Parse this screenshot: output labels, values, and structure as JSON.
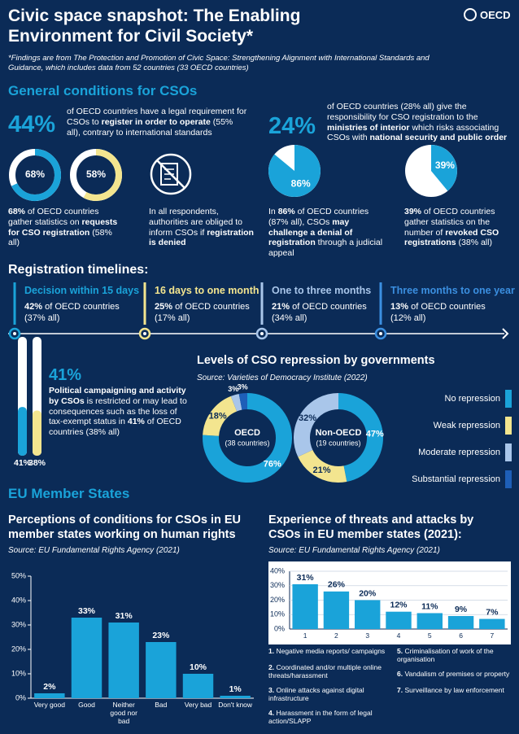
{
  "header": {
    "title": "Civic space snapshot: The Enabling Environment for Civil Society*",
    "logo": "OECD",
    "footnote": "*Findings are from The Protection and Promotion of Civic Space: Strengthening Alignment with International Standards and Guidance, which includes data from 52 countries (33 OECD countries)"
  },
  "general": {
    "heading": "General conditions for CSOs",
    "headline_stats": [
      {
        "value": "44%",
        "parts": [
          "of OECD countries have a legal requirement for CSOs to ",
          {
            "bold": "register in order to operate"
          },
          " (55% all), contrary to international standards"
        ]
      },
      {
        "value": "24%",
        "parts": [
          "of OECD countries (28% all) give the responsibility for CSO registration to the ",
          {
            "bold": "ministries of interior"
          },
          " which risks associating CSOs with ",
          {
            "bold": "national security and public order"
          }
        ]
      }
    ],
    "rings": [
      {
        "value": 68,
        "label": "68%",
        "color": "#1aa3d9"
      },
      {
        "value": 58,
        "label": "58%",
        "color": "#f3e58f"
      }
    ],
    "rings_text": [
      {
        "bold": "68%"
      },
      " of OECD countries gather statistics on ",
      {
        "bold": "requests for CSO registration"
      },
      " (58% all)"
    ],
    "notice_text": [
      "In all respondents, authorities are obliged to inform CSOs if ",
      {
        "bold": "registration is denied"
      }
    ],
    "pies": [
      {
        "value": 86,
        "label": "86%",
        "color": "#1aa3d9",
        "parts": [
          "In ",
          {
            "bold": "86%"
          },
          " of OECD countries (87% all), CSOs ",
          {
            "bold": "may challenge a denial of registration"
          },
          " through a judicial appeal"
        ]
      },
      {
        "value": 39,
        "label": "39%",
        "color": "#1aa3d9",
        "parts": [
          {
            "bold": "39%"
          },
          " of OECD countries gather statistics on the number of ",
          {
            "bold": "revoked CSO registrations"
          },
          " (38% all)"
        ]
      }
    ]
  },
  "timelines": {
    "heading": "Registration timelines:",
    "items": [
      {
        "title": "Decision within 15 days",
        "color": "#1aa3d9",
        "share": "42%",
        "text": " of OECD countries",
        "note": "(37% all)"
      },
      {
        "title": "16 days to one month",
        "color": "#f3e58f",
        "share": "25%",
        "text": " of OECD countries",
        "note": "(17% all)"
      },
      {
        "title": "One to three months",
        "color": "#a9c6ea",
        "share": "21%",
        "text": " of OECD countries",
        "note": "(34% all)"
      },
      {
        "title": "Three months to one year",
        "color": "#3b8fe0",
        "share": "13%",
        "text": " of OECD countries",
        "note": "(12% all)"
      }
    ]
  },
  "campaigning": {
    "headline": "41%",
    "bars": [
      {
        "value": 41,
        "label": "41%",
        "color": "#1aa3d9"
      },
      {
        "value": 38,
        "label": "38%",
        "color": "#f3e58f"
      }
    ],
    "parts": [
      {
        "bold": "Political campaigning and activity by CSOs"
      },
      " is restricted or may lead to consequences such as the loss of tax-exempt status in ",
      {
        "bold": "41%"
      },
      " of OECD countries (38% all)"
    ]
  },
  "repression": {
    "type": "donut",
    "title": "Levels of CSO repression by governments",
    "source": "Source: Varieties of Democracy Institute (2022)",
    "categories": [
      "No repression",
      "Weak repression",
      "Moderate repression",
      "Substantial repression"
    ],
    "colors": [
      "#1aa3d9",
      "#f3e58f",
      "#a9c6ea",
      "#1e5fb8"
    ],
    "series": [
      {
        "name": "OECD",
        "note": "(38 countries)",
        "values": [
          76,
          18,
          3,
          3
        ],
        "value_labels": [
          "76%",
          "18%",
          "3%",
          "3%"
        ]
      },
      {
        "name": "Non-OECD",
        "note": "(19 countries)",
        "values": [
          47,
          21,
          32,
          0
        ],
        "value_labels": [
          "47%",
          "21%",
          "32%",
          null
        ]
      }
    ]
  },
  "eu": {
    "heading": "EU Member States",
    "charts": [
      {
        "type": "bar",
        "title": "Perceptions of conditions for CSOs in EU member states working on human rights",
        "source": "Source: EU Fundamental Rights Agency (2021)",
        "categories": [
          "Very good",
          "Good",
          "Neither good nor bad",
          "Bad",
          "Very bad",
          "Don't know"
        ],
        "values": [
          2,
          33,
          31,
          23,
          10,
          1
        ],
        "value_labels": [
          "2%",
          "33%",
          "31%",
          "23%",
          "10%",
          "1%"
        ],
        "color": "#1aa3d9",
        "ylim": [
          0,
          50
        ],
        "yticks": [
          {
            "value": 0,
            "label": "0%"
          },
          {
            "value": 10,
            "label": "10%"
          },
          {
            "value": 20,
            "label": "20%"
          },
          {
            "value": 30,
            "label": "30%"
          },
          {
            "value": 40,
            "label": "40%"
          },
          {
            "value": 50,
            "label": "50%"
          }
        ],
        "grid": false
      },
      {
        "type": "bar",
        "title": "Experience of threats and attacks by CSOs in EU member states (2021):",
        "source": "Source: EU Fundamental Rights Agency (2021)",
        "categories": [
          "1",
          "2",
          "3",
          "4",
          "5",
          "6",
          "7"
        ],
        "values": [
          31,
          26,
          20,
          12,
          11,
          9,
          7
        ],
        "value_labels": [
          "31%",
          "26%",
          "20%",
          "12%",
          "11%",
          "9%",
          "7%"
        ],
        "color": "#1aa3d9",
        "ylim": [
          0,
          40
        ],
        "yticks": [
          {
            "value": 0,
            "label": "0%"
          },
          {
            "value": 10,
            "label": "10%"
          },
          {
            "value": 20,
            "label": "20%"
          },
          {
            "value": 30,
            "label": "30%"
          },
          {
            "value": 40,
            "label": "40%"
          }
        ],
        "grid": true,
        "legend": [
          {
            "num": "1.",
            "text": "Negative media reports/ campaigns"
          },
          {
            "num": "2.",
            "text": "Coordinated and/or multiple online threats/harassment"
          },
          {
            "num": "3.",
            "text": "Online attacks against digital infrastructure"
          },
          {
            "num": "4.",
            "text": "Harassment in the form of legal action/SLAPP"
          },
          {
            "num": "5.",
            "text": "Criminalisation of work of the organisation"
          },
          {
            "num": "6.",
            "text": "Vandalism of premises or property"
          },
          {
            "num": "7.",
            "text": "Surveillance by law enforcement"
          }
        ]
      }
    ]
  }
}
